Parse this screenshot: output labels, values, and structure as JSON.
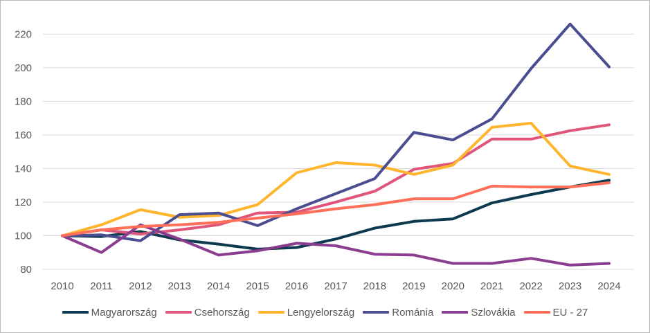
{
  "chart_data": {
    "type": "line",
    "title": "",
    "xlabel": "",
    "ylabel": "",
    "categories": [
      "2010",
      "2011",
      "2012",
      "2013",
      "2014",
      "2015",
      "2016",
      "2017",
      "2018",
      "2019",
      "2020",
      "2021",
      "2022",
      "2023",
      "2024"
    ],
    "ylim": [
      80,
      230
    ],
    "yticks": [
      80,
      100,
      120,
      140,
      160,
      180,
      200,
      220
    ],
    "grid": "horizontal",
    "legend_position": "bottom",
    "series": [
      {
        "name": "Magyarország",
        "color": "#0d3a4f",
        "values": [
          100,
          99.5,
          102.5,
          97.5,
          95,
          92,
          93,
          98,
          104.5,
          108.5,
          110,
          119.5,
          124.5,
          129,
          133
        ]
      },
      {
        "name": "Csehország",
        "color": "#e0557a",
        "values": [
          100,
          103.5,
          101,
          103.5,
          106.5,
          113.5,
          114,
          120,
          126.5,
          139.5,
          143,
          157.5,
          157.5,
          162.5,
          166
        ]
      },
      {
        "name": "Lengyelország",
        "color": "#ffb62e",
        "values": [
          100,
          106.5,
          115.5,
          111,
          112,
          118.5,
          137.5,
          143.5,
          142,
          136.5,
          142,
          164.5,
          167,
          141.5,
          136.5
        ]
      },
      {
        "name": "Románia",
        "color": "#4a4e91",
        "values": [
          100,
          100.5,
          97,
          112.5,
          113.5,
          106,
          116,
          125,
          134,
          161.5,
          157,
          169.5,
          199.5,
          226,
          200.5
        ]
      },
      {
        "name": "Szlovákia",
        "color": "#8b3d8f",
        "values": [
          100,
          90,
          106.5,
          98,
          88.5,
          91,
          95.5,
          94,
          89,
          88.5,
          83.5,
          83.5,
          86.5,
          82.5,
          83.5
        ]
      },
      {
        "name": "EU - 27",
        "color": "#ff6f59",
        "values": [
          100,
          103.5,
          105.5,
          106.5,
          108,
          110.5,
          113,
          116,
          118.5,
          122,
          122,
          129.5,
          129,
          129,
          131.5
        ]
      }
    ]
  }
}
